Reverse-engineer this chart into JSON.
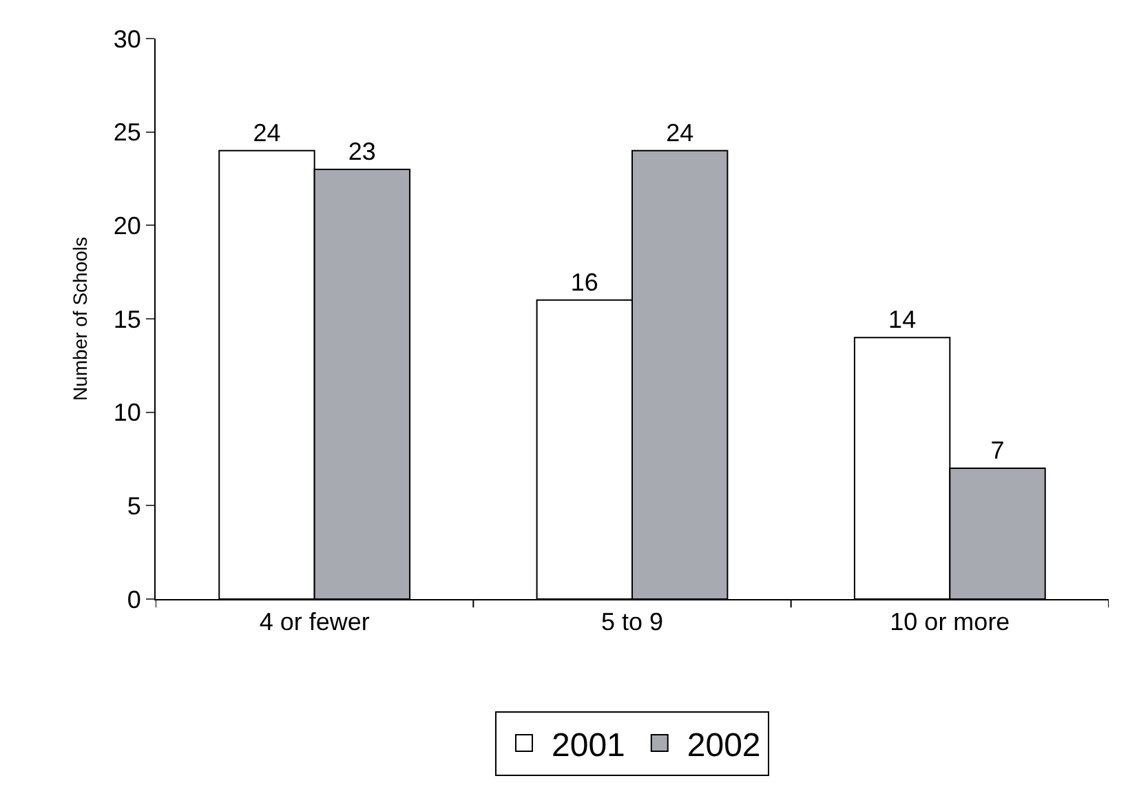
{
  "chart_data": {
    "type": "bar",
    "ylabel": "Number of Schools",
    "categories": [
      "4 or fewer",
      "5 to 9",
      "10 or more"
    ],
    "series": [
      {
        "name": "2001",
        "color": "#ffffff",
        "values": [
          24,
          16,
          14
        ]
      },
      {
        "name": "2002",
        "color": "#a7aab0",
        "values": [
          23,
          24,
          7
        ]
      }
    ],
    "ylim": [
      0,
      30
    ],
    "yticks": [
      0,
      5,
      10,
      15,
      20,
      25,
      30
    ],
    "legend": "bottom",
    "data_labels": true
  }
}
